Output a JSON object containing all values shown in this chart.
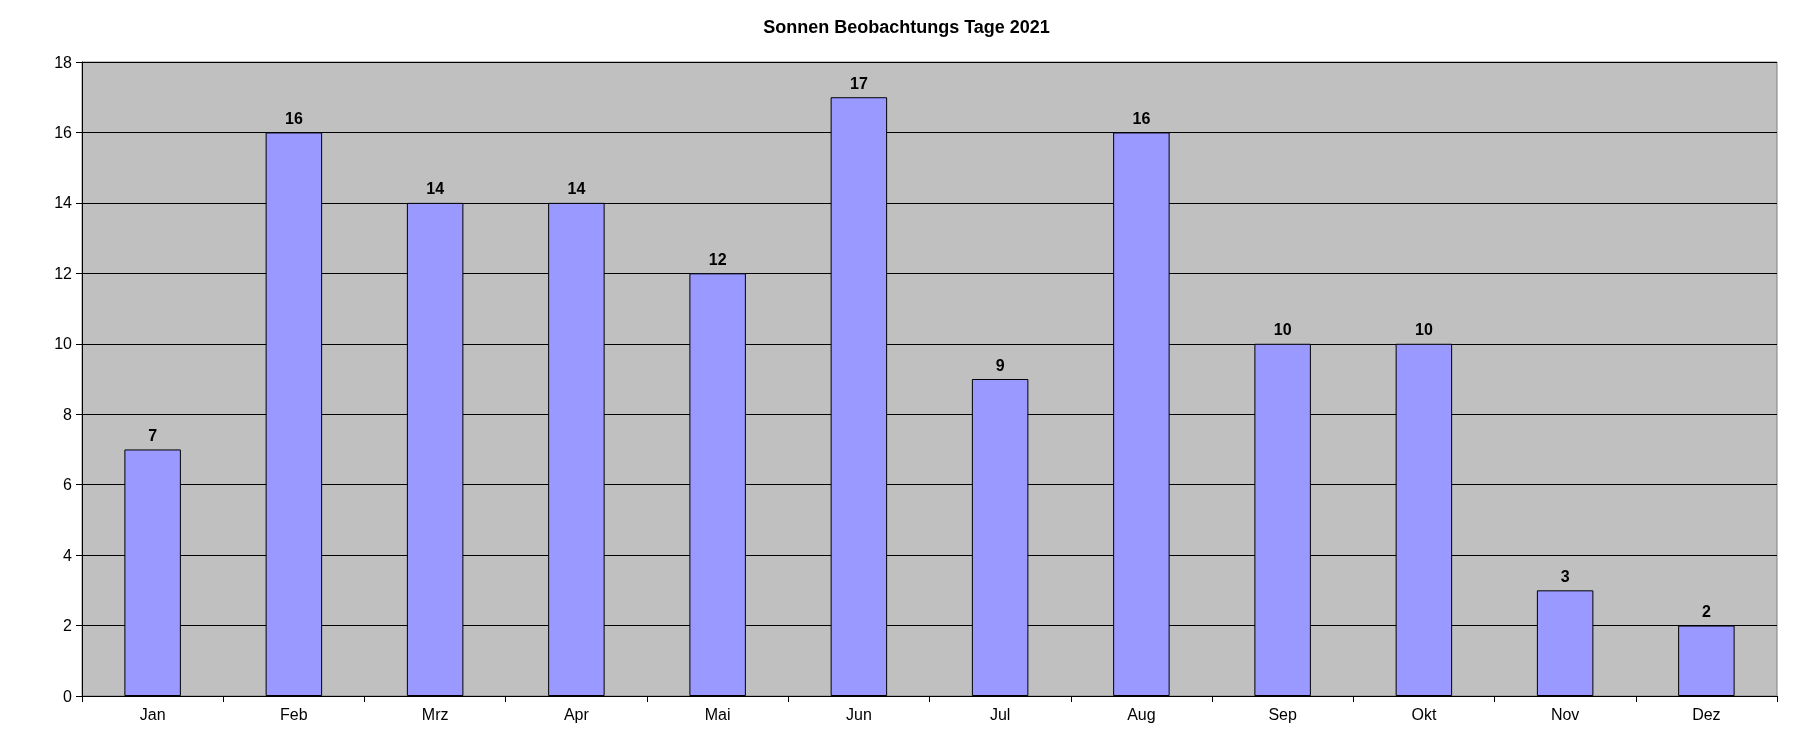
{
  "chart_data": {
    "type": "bar",
    "title": "Sonnen Beobachtungs Tage 2021",
    "categories": [
      "Jan",
      "Feb",
      "Mrz",
      "Apr",
      "Mai",
      "Jun",
      "Jul",
      "Aug",
      "Sep",
      "Okt",
      "Nov",
      "Dez"
    ],
    "values": [
      7,
      16,
      14,
      14,
      12,
      17,
      9,
      16,
      10,
      10,
      3,
      2
    ],
    "color": "#9999ff",
    "ylim": [
      0,
      18
    ],
    "yticks": [
      0,
      2,
      4,
      6,
      8,
      10,
      12,
      14,
      16,
      18
    ],
    "grid": "y",
    "data_labels": true
  }
}
